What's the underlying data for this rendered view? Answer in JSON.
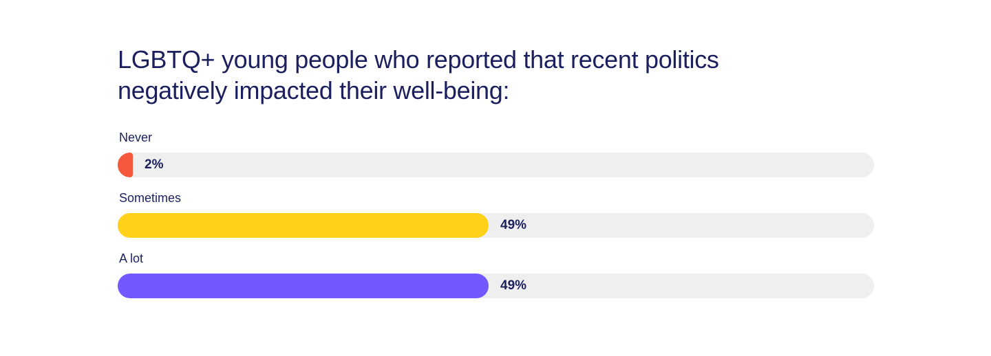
{
  "chart_data": {
    "type": "bar",
    "orientation": "horizontal",
    "title": "LGBTQ+ young people who reported that recent politics negatively impacted their well-being:",
    "categories": [
      "Never",
      "Sometimes",
      "A lot"
    ],
    "values": [
      2,
      49,
      49
    ],
    "value_labels": [
      "2%",
      "49%",
      "49%"
    ],
    "unit": "%",
    "xlim": [
      0,
      100
    ],
    "grid": false,
    "legend": "none",
    "colors": [
      "#f4573b",
      "#ffd219",
      "#7357ff"
    ],
    "track_color": "#efefef",
    "text_color": "#1b1f5e"
  }
}
